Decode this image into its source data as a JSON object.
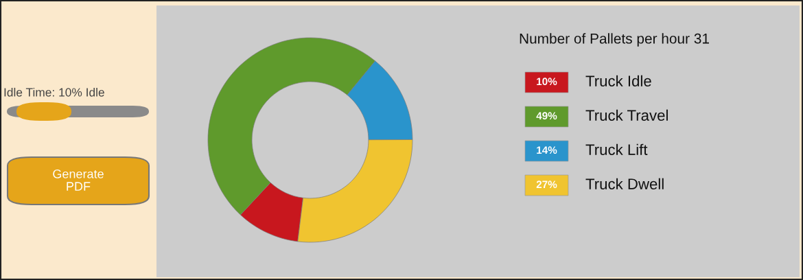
{
  "chart_data": {
    "type": "donut",
    "title": "Number of Pallets per hour 31",
    "categories": [
      "Truck Idle",
      "Truck Travel",
      "Truck Lift",
      "Truck Dwell"
    ],
    "values": [
      10,
      49,
      14,
      27
    ],
    "colors": [
      "#c8171e",
      "#5f9a2c",
      "#2a94cc",
      "#f0c430"
    ],
    "value_labels": [
      "10%",
      "49%",
      "14%",
      "27%"
    ],
    "legend": "right",
    "annotations": [
      "Idle Time: 10% Idle",
      "Generate\nPDF"
    ]
  }
}
